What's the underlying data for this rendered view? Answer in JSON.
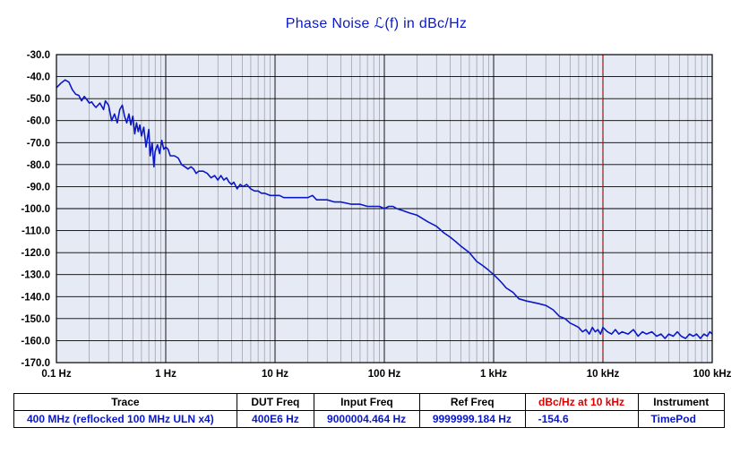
{
  "title": "Phase  Noise ℒ(f) in dBc/Hz",
  "colors": {
    "trace": "#0a18c8",
    "plot_bg": "#e6eaf4",
    "grid": "#8a8a9a",
    "marker": "#cc0000"
  },
  "chart_data": {
    "type": "line",
    "x_scale": "log",
    "xlim": [
      0.1,
      100000
    ],
    "ylim": [
      -170,
      -30
    ],
    "x_ticks": [
      {
        "value": 0.1,
        "label": "0.1 Hz"
      },
      {
        "value": 1,
        "label": "1 Hz"
      },
      {
        "value": 10,
        "label": "10 Hz"
      },
      {
        "value": 100,
        "label": "100 Hz"
      },
      {
        "value": 1000,
        "label": "1 kHz"
      },
      {
        "value": 10000,
        "label": "10 kHz"
      },
      {
        "value": 100000,
        "label": "100 kHz"
      }
    ],
    "y_ticks": [
      -30,
      -40,
      -50,
      -60,
      -70,
      -80,
      -90,
      -100,
      -110,
      -120,
      -130,
      -140,
      -150,
      -160,
      -170
    ],
    "y_tick_labels": [
      "-30.0",
      "-40.0",
      "-50.0",
      "-60.0",
      "-70.0",
      "-80.0",
      "-90.0",
      "-100.0",
      "-110.0",
      "-120.0",
      "-130.0",
      "-140.0",
      "-150.0",
      "-160.0",
      "-170.0"
    ],
    "grid": true,
    "marker_x": 10000,
    "series": [
      {
        "name": "400 MHz (reflocked 100 MHz ULN x4)",
        "points": [
          [
            0.1,
            -45
          ],
          [
            0.11,
            -43
          ],
          [
            0.12,
            -41.5
          ],
          [
            0.13,
            -42.5
          ],
          [
            0.14,
            -46
          ],
          [
            0.15,
            -48
          ],
          [
            0.16,
            -48.5
          ],
          [
            0.17,
            -51
          ],
          [
            0.18,
            -49
          ],
          [
            0.19,
            -50.5
          ],
          [
            0.2,
            -52
          ],
          [
            0.21,
            -51.5
          ],
          [
            0.22,
            -53
          ],
          [
            0.23,
            -54
          ],
          [
            0.25,
            -52
          ],
          [
            0.27,
            -55
          ],
          [
            0.28,
            -51
          ],
          [
            0.3,
            -53
          ],
          [
            0.32,
            -60
          ],
          [
            0.34,
            -57
          ],
          [
            0.36,
            -61
          ],
          [
            0.38,
            -55
          ],
          [
            0.4,
            -53
          ],
          [
            0.42,
            -58
          ],
          [
            0.44,
            -61
          ],
          [
            0.46,
            -57
          ],
          [
            0.48,
            -62
          ],
          [
            0.5,
            -58
          ],
          [
            0.52,
            -66
          ],
          [
            0.54,
            -61
          ],
          [
            0.56,
            -65
          ],
          [
            0.58,
            -62
          ],
          [
            0.6,
            -67
          ],
          [
            0.63,
            -63
          ],
          [
            0.66,
            -72
          ],
          [
            0.7,
            -64
          ],
          [
            0.72,
            -76
          ],
          [
            0.75,
            -70
          ],
          [
            0.78,
            -81
          ],
          [
            0.8,
            -74
          ],
          [
            0.84,
            -71
          ],
          [
            0.88,
            -75
          ],
          [
            0.92,
            -69
          ],
          [
            0.96,
            -73
          ],
          [
            1.0,
            -72
          ],
          [
            1.05,
            -73
          ],
          [
            1.1,
            -76
          ],
          [
            1.2,
            -76
          ],
          [
            1.3,
            -77
          ],
          [
            1.4,
            -80
          ],
          [
            1.5,
            -81
          ],
          [
            1.6,
            -82
          ],
          [
            1.7,
            -81
          ],
          [
            1.8,
            -82
          ],
          [
            1.9,
            -84
          ],
          [
            2.0,
            -83
          ],
          [
            2.2,
            -83
          ],
          [
            2.4,
            -84
          ],
          [
            2.6,
            -86
          ],
          [
            2.8,
            -85
          ],
          [
            3.0,
            -87
          ],
          [
            3.2,
            -85
          ],
          [
            3.4,
            -87
          ],
          [
            3.6,
            -86
          ],
          [
            3.8,
            -88
          ],
          [
            4.0,
            -89
          ],
          [
            4.2,
            -88
          ],
          [
            4.5,
            -91
          ],
          [
            4.8,
            -89
          ],
          [
            5.1,
            -90
          ],
          [
            5.5,
            -89
          ],
          [
            6.0,
            -91
          ],
          [
            6.5,
            -92
          ],
          [
            7.0,
            -92
          ],
          [
            7.5,
            -93
          ],
          [
            8.0,
            -93
          ],
          [
            9.0,
            -94
          ],
          [
            10,
            -94
          ],
          [
            11,
            -94
          ],
          [
            12,
            -95
          ],
          [
            14,
            -95
          ],
          [
            16,
            -95
          ],
          [
            18,
            -95
          ],
          [
            20,
            -95
          ],
          [
            22,
            -94
          ],
          [
            24,
            -96
          ],
          [
            26,
            -96
          ],
          [
            30,
            -96
          ],
          [
            35,
            -97
          ],
          [
            40,
            -97
          ],
          [
            50,
            -98
          ],
          [
            60,
            -98
          ],
          [
            70,
            -99
          ],
          [
            80,
            -99
          ],
          [
            90,
            -99
          ],
          [
            100,
            -100
          ],
          [
            110,
            -99
          ],
          [
            120,
            -99
          ],
          [
            130,
            -100
          ],
          [
            150,
            -101
          ],
          [
            170,
            -102
          ],
          [
            200,
            -103
          ],
          [
            250,
            -106
          ],
          [
            300,
            -108
          ],
          [
            350,
            -111
          ],
          [
            400,
            -113
          ],
          [
            450,
            -115
          ],
          [
            500,
            -117
          ],
          [
            600,
            -120
          ],
          [
            700,
            -124
          ],
          [
            800,
            -126
          ],
          [
            900,
            -128
          ],
          [
            1000,
            -130
          ],
          [
            1100,
            -132
          ],
          [
            1200,
            -134
          ],
          [
            1300,
            -136
          ],
          [
            1500,
            -138
          ],
          [
            1700,
            -141
          ],
          [
            2000,
            -142
          ],
          [
            2500,
            -143
          ],
          [
            3000,
            -144
          ],
          [
            3500,
            -146
          ],
          [
            4000,
            -149
          ],
          [
            4500,
            -150
          ],
          [
            5000,
            -152
          ],
          [
            5500,
            -153
          ],
          [
            6000,
            -154
          ],
          [
            6500,
            -156
          ],
          [
            7000,
            -155
          ],
          [
            7500,
            -157
          ],
          [
            8000,
            -154
          ],
          [
            8500,
            -156
          ],
          [
            9000,
            -155
          ],
          [
            9500,
            -157
          ],
          [
            10000,
            -154
          ],
          [
            11000,
            -156
          ],
          [
            12000,
            -157
          ],
          [
            13000,
            -155
          ],
          [
            14000,
            -157
          ],
          [
            15000,
            -156
          ],
          [
            17000,
            -157
          ],
          [
            19000,
            -155
          ],
          [
            21000,
            -158
          ],
          [
            23000,
            -156
          ],
          [
            25000,
            -157
          ],
          [
            28000,
            -156
          ],
          [
            31000,
            -158
          ],
          [
            34000,
            -157
          ],
          [
            37000,
            -159
          ],
          [
            40000,
            -157
          ],
          [
            44000,
            -158
          ],
          [
            48000,
            -156
          ],
          [
            52000,
            -158
          ],
          [
            57000,
            -159
          ],
          [
            62000,
            -157
          ],
          [
            67000,
            -158
          ],
          [
            72000,
            -157
          ],
          [
            78000,
            -159
          ],
          [
            84000,
            -157
          ],
          [
            90000,
            -158
          ],
          [
            95000,
            -156
          ],
          [
            100000,
            -157
          ]
        ]
      }
    ]
  },
  "table": {
    "headers": [
      "Trace",
      "DUT Freq",
      "Input Freq",
      "Ref Freq",
      "dBc/Hz at 10 kHz",
      "Instrument"
    ],
    "row": [
      "400 MHz (reflocked 100 MHz ULN x4)",
      "400E6 Hz",
      "9000004.464 Hz",
      "9999999.184 Hz",
      "-154.6",
      "TimePod"
    ]
  }
}
